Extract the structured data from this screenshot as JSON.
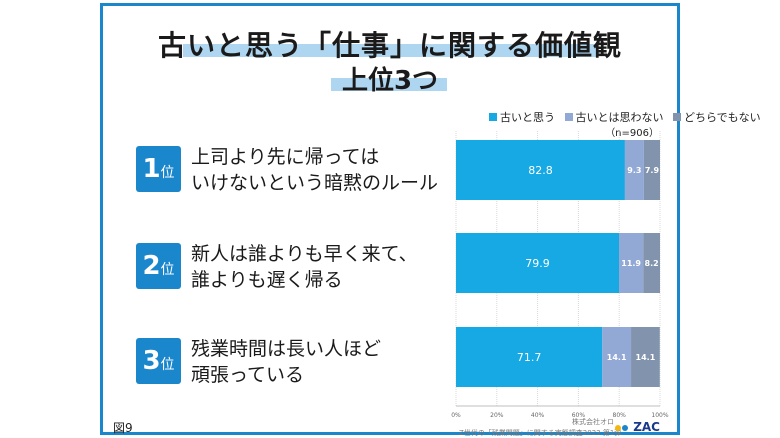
{
  "title": {
    "line1": "古いと思う「仕事」に関する価値観",
    "line2": "上位3つ"
  },
  "legend": {
    "items": [
      "古いと思う",
      "古いとは思わない",
      "どちらでもない"
    ],
    "note": "（n=906）"
  },
  "colors": {
    "frame": "#1a86cc",
    "highlight": "#aed6f1",
    "seg1": "#17a9e3",
    "seg2": "#92a9d6",
    "seg3": "#8294ad",
    "rank": "#1a86cc"
  },
  "rows": [
    {
      "rank": "1",
      "suffix": "位",
      "line1": "上司より先に帰っては",
      "line2": "いけないという暗黙のルール"
    },
    {
      "rank": "2",
      "suffix": "位",
      "line1": "新人は誰よりも早く来て、",
      "line2": "誰よりも遅く帰る"
    },
    {
      "rank": "3",
      "suffix": "位",
      "line1": "残業時間は長い人ほど",
      "line2": "頑張っている"
    }
  ],
  "footer": {
    "figure": "図9",
    "credit_company": "株式会社オロ",
    "credit_survey": "Z世代の「残業問題」に関する実態調査2023 第1弾",
    "logo": "ZAC"
  },
  "chart_data": {
    "type": "bar",
    "orientation": "horizontal",
    "stacked": true,
    "categories": [
      "上司より先に帰ってはいけないという暗黙のルール",
      "新人は誰よりも早く来て、誰よりも遅く帰る",
      "残業時間は長い人ほど頑張っている"
    ],
    "series": [
      {
        "name": "古いと思う",
        "values": [
          82.8,
          79.9,
          71.7
        ]
      },
      {
        "name": "古いとは思わない",
        "values": [
          9.3,
          11.9,
          14.1
        ]
      },
      {
        "name": "どちらでもない",
        "values": [
          7.9,
          8.2,
          14.1
        ]
      }
    ],
    "xlim": [
      0,
      100
    ],
    "xticks": [
      "0%",
      "20%",
      "40%",
      "60%",
      "80%",
      "100%"
    ],
    "legend_position": "top-right",
    "grid": true
  }
}
